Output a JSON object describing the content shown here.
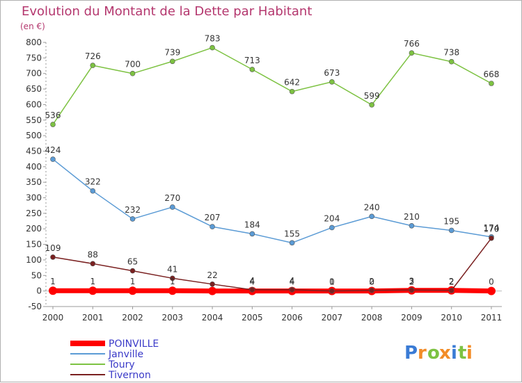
{
  "chart_data": {
    "type": "line",
    "title": "Evolution du Montant de la Dette par Habitant",
    "subtitle": "(en €)",
    "x": [
      "2000",
      "2001",
      "2002",
      "2003",
      "2004",
      "2005",
      "2006",
      "2007",
      "2008",
      "2009",
      "2010",
      "2011"
    ],
    "ylim": [
      -50,
      800
    ],
    "yticks": [
      -50,
      0,
      50,
      100,
      150,
      200,
      250,
      300,
      350,
      400,
      450,
      500,
      550,
      600,
      650,
      700,
      750,
      800
    ],
    "grid": false,
    "legend_position": "bottom-left",
    "series": [
      {
        "name": "POINVILLE",
        "color": "#ff0000",
        "values": [
          1,
          1,
          1,
          1,
          0,
          0,
          0,
          0,
          0,
          2,
          2,
          0
        ],
        "labels": [
          "1",
          "1",
          "1",
          "1",
          "",
          "",
          "",
          "",
          "",
          "",
          "",
          ""
        ],
        "show_labels": true
      },
      {
        "name": "Janville",
        "color": "#5b9bd5",
        "values": [
          424,
          322,
          232,
          270,
          207,
          184,
          155,
          204,
          240,
          210,
          195,
          174
        ],
        "labels": [
          "424",
          "322",
          "232",
          "270",
          "207",
          "184",
          "155",
          "204",
          "240",
          "210",
          "195",
          "174"
        ],
        "show_labels": true
      },
      {
        "name": "Toury",
        "color": "#7dc242",
        "values": [
          536,
          726,
          700,
          739,
          783,
          713,
          642,
          673,
          599,
          766,
          738,
          668
        ],
        "labels": [
          "536",
          "726",
          "700",
          "739",
          "783",
          "713",
          "642",
          "673",
          "599",
          "766",
          "738",
          "668"
        ],
        "show_labels": true
      },
      {
        "name": "Tivernon",
        "color": "#7a2020",
        "values": [
          109,
          88,
          65,
          41,
          22,
          4,
          4,
          0,
          2,
          3,
          2,
          170
        ],
        "labels": [
          "109",
          "88",
          "65",
          "41",
          "22",
          "4",
          "4",
          "0",
          "2",
          "3",
          "2",
          "170"
        ],
        "show_labels": true
      }
    ],
    "extra_labels": [
      {
        "x": "2005",
        "text": "4"
      },
      {
        "x": "2006",
        "text": "4"
      },
      {
        "x": "2007",
        "text": "1"
      },
      {
        "x": "2008",
        "text": "0"
      },
      {
        "x": "2009",
        "text": "2"
      },
      {
        "x": "2010",
        "text": "2"
      },
      {
        "x": "2011",
        "text": "0"
      }
    ]
  },
  "logo": {
    "letters": [
      "P",
      "r",
      "o",
      "x",
      "i",
      "t",
      "i"
    ],
    "colors": [
      "#3a7bd5",
      "#f28c28",
      "#7dc242",
      "#f28c28",
      "#3a7bd5",
      "#7dc242",
      "#f28c28"
    ]
  }
}
